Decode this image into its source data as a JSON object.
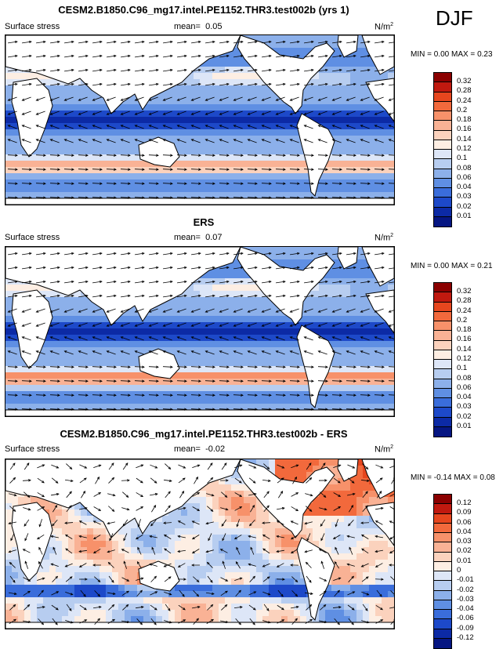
{
  "season": "DJF",
  "panels": [
    {
      "title": "CESM2.B1850.C96_mg17.intel.PE1152.THR3.test002b (yrs 1)",
      "left_label": "Surface stress",
      "mean_label": "mean=",
      "mean_value": "0.05",
      "units": "N/m",
      "units_sup": "2",
      "min_label": "MIN =",
      "min_value": "0.00",
      "max_label": "MAX =",
      "max_value": "0.23",
      "colorbar_labels": [
        "0.32",
        "0.28",
        "0.24",
        "0.2",
        "0.18",
        "0.16",
        "0.14",
        "0.12",
        "0.1",
        "0.08",
        "0.06",
        "0.04",
        "0.03",
        "0.02",
        "0.01"
      ]
    },
    {
      "title": "ERS",
      "left_label": "Surface stress",
      "mean_label": "mean=",
      "mean_value": "0.07",
      "units": "N/m",
      "units_sup": "2",
      "min_label": "MIN =",
      "min_value": "0.00",
      "max_label": "MAX =",
      "max_value": "0.21",
      "colorbar_labels": [
        "0.32",
        "0.28",
        "0.24",
        "0.2",
        "0.18",
        "0.16",
        "0.14",
        "0.12",
        "0.1",
        "0.08",
        "0.06",
        "0.04",
        "0.03",
        "0.02",
        "0.01"
      ]
    },
    {
      "title": "CESM2.B1850.C96_mg17.intel.PE1152.THR3.test002b - ERS",
      "left_label": "Surface stress",
      "mean_label": "mean=",
      "mean_value": "-0.02",
      "units": "N/m",
      "units_sup": "2",
      "min_label": "MIN =",
      "min_value": "-0.14",
      "max_label": "MAX =",
      "max_value": "0.08",
      "colorbar_labels": [
        "0.12",
        "0.09",
        "0.06",
        "0.04",
        "0.03",
        "0.02",
        "0.01",
        "0",
        "-0.01",
        "-0.02",
        "-0.03",
        "-0.04",
        "-0.06",
        "-0.09",
        "-0.12"
      ]
    }
  ],
  "colorbar_colors": [
    "#8b0000",
    "#c0190f",
    "#e6461e",
    "#f2693c",
    "#f7916a",
    "#f9b295",
    "#fbd2bd",
    "#fdeee3",
    "#dde6f7",
    "#b7cdf0",
    "#8cb0ea",
    "#5f8fe3",
    "#3a6ddb",
    "#1d49c9",
    "#0c2aa5",
    "#061682"
  ],
  "chart_data": [
    {
      "type": "heatmap",
      "title": "CESM2.B1850.C96_mg17.intel.PE1152.THR3.test002b (yrs 1)",
      "variable": "Surface stress",
      "units": "N/m2",
      "season": "DJF",
      "mean": 0.05,
      "min": 0.0,
      "max": 0.23,
      "levels": [
        0.01,
        0.02,
        0.03,
        0.04,
        0.06,
        0.08,
        0.1,
        0.12,
        0.14,
        0.16,
        0.18,
        0.2,
        0.24,
        0.28,
        0.32
      ]
    },
    {
      "type": "heatmap",
      "title": "ERS",
      "variable": "Surface stress",
      "units": "N/m2",
      "season": "DJF",
      "mean": 0.07,
      "min": 0.0,
      "max": 0.21,
      "levels": [
        0.01,
        0.02,
        0.03,
        0.04,
        0.06,
        0.08,
        0.1,
        0.12,
        0.14,
        0.16,
        0.18,
        0.2,
        0.24,
        0.28,
        0.32
      ]
    },
    {
      "type": "heatmap",
      "title": "CESM2.B1850.C96_mg17.intel.PE1152.THR3.test002b - ERS",
      "variable": "Surface stress",
      "units": "N/m2",
      "season": "DJF",
      "mean": -0.02,
      "min": -0.14,
      "max": 0.08,
      "levels": [
        -0.12,
        -0.09,
        -0.06,
        -0.04,
        -0.03,
        -0.02,
        -0.01,
        0,
        0.01,
        0.02,
        0.03,
        0.04,
        0.06,
        0.09,
        0.12
      ]
    }
  ]
}
